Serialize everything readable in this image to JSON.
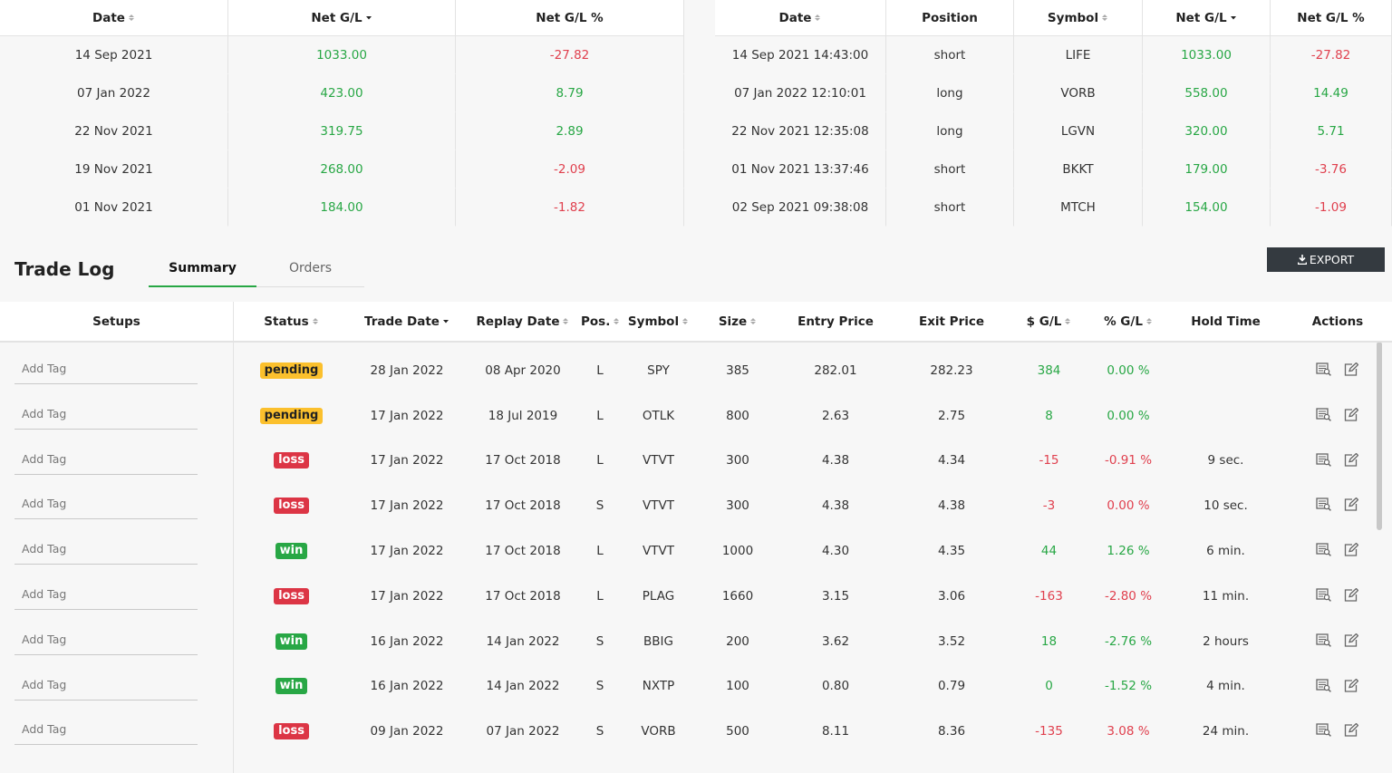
{
  "top_tables": [
    {
      "headers": [
        "Date",
        "Net G/L",
        "Net G/L %"
      ],
      "rows": [
        [
          "14 Sep 2021",
          "1033.00",
          "-27.82"
        ],
        [
          "07 Jan 2022",
          "423.00",
          "8.79"
        ],
        [
          "22 Nov 2021",
          "319.75",
          "2.89"
        ],
        [
          "19 Nov 2021",
          "268.00",
          "-2.09"
        ],
        [
          "01 Nov 2021",
          "184.00",
          "-1.82"
        ]
      ]
    },
    {
      "headers": [
        "Date",
        "Position",
        "Symbol",
        "Net G/L",
        "Net G/L %"
      ],
      "rows": [
        [
          "14 Sep 2021 14:43:00",
          "short",
          "LIFE",
          "1033.00",
          "-27.82"
        ],
        [
          "07 Jan 2022 12:10:01",
          "long",
          "VORB",
          "558.00",
          "14.49"
        ],
        [
          "22 Nov 2021 12:35:08",
          "long",
          "LGVN",
          "320.00",
          "5.71"
        ],
        [
          "01 Nov 2021 13:37:46",
          "short",
          "BKKT",
          "179.00",
          "-3.76"
        ],
        [
          "02 Sep 2021 09:38:08",
          "short",
          "MTCH",
          "154.00",
          "-1.09"
        ]
      ]
    }
  ],
  "trade_log": {
    "title": "Trade Log",
    "tabs": [
      "Summary",
      "Orders"
    ],
    "export": "EXPORT",
    "headers": [
      "Setups",
      "Status",
      "Trade Date",
      "Replay Date",
      "Pos.",
      "Symbol",
      "Size",
      "Entry Price",
      "Exit Price",
      "$ G/L",
      "% G/L",
      "Hold Time",
      "Actions"
    ],
    "rows": [
      [
        "Add Tag",
        {
          "label": "pending",
          "color": "#fbc02d"
        },
        "28 Jan 2022",
        "08 Apr 2020",
        "L",
        "SPY",
        "385",
        "282.01",
        "282.23",
        "384",
        "0.00 %"
      ],
      [
        "Add Tag",
        {
          "label": "pending",
          "color": "#fbc02d"
        },
        "17 Jan 2022",
        "18 Jul 2019",
        "L",
        "OTLK",
        "800",
        "2.63",
        "2.75",
        "8",
        "0.00 %"
      ],
      [
        "Add Tag",
        {
          "label": "loss",
          "color": "#dc3545"
        },
        "17 Jan 2022",
        "17 Oct 2018",
        "L",
        "VTVT",
        "300",
        "4.38",
        "4.34",
        "-15",
        "-0.91 %",
        "9 sec."
      ],
      [
        "Add Tag",
        {
          "label": "loss",
          "color": "#dc3545"
        },
        "17 Jan 2022",
        "17 Oct 2018",
        "S",
        "VTVT",
        "300",
        "4.38",
        "4.38",
        "-3",
        "0.00 %",
        "10 sec."
      ],
      [
        "Add Tag",
        {
          "label": "win",
          "color": "#28a745"
        },
        "17 Jan 2022",
        "17 Oct 2018",
        "L",
        "VTVT",
        "1000",
        "4.30",
        "4.35",
        "44",
        "1.26 %",
        "6 min."
      ],
      [
        "Add Tag",
        {
          "label": "loss",
          "color": "#dc3545"
        },
        "17 Jan 2022",
        "17 Oct 2018",
        "L",
        "PLAG",
        "1660",
        "3.15",
        "3.06",
        "-163",
        "-2.80 %",
        "11 min."
      ],
      [
        "Add Tag",
        {
          "label": "win",
          "color": "#28a745"
        },
        "16 Jan 2022",
        "14 Jan 2022",
        "S",
        "BBIG",
        "200",
        "3.62",
        "3.52",
        "18",
        "-2.76 %",
        "2 hours"
      ],
      [
        "Add Tag",
        {
          "label": "win",
          "color": "#28a745"
        },
        "16 Jan 2022",
        "14 Jan 2022",
        "S",
        "NXTP",
        "100",
        "0.80",
        "0.79",
        "0",
        "-1.52 %",
        "4 min."
      ],
      [
        "Add Tag",
        {
          "label": "loss",
          "color": "#dc3545"
        },
        "09 Jan 2022",
        "07 Jan 2022",
        "S",
        "VORB",
        "500",
        "8.11",
        "8.36",
        "-135",
        "3.08 %",
        "24 min."
      ]
    ]
  }
}
